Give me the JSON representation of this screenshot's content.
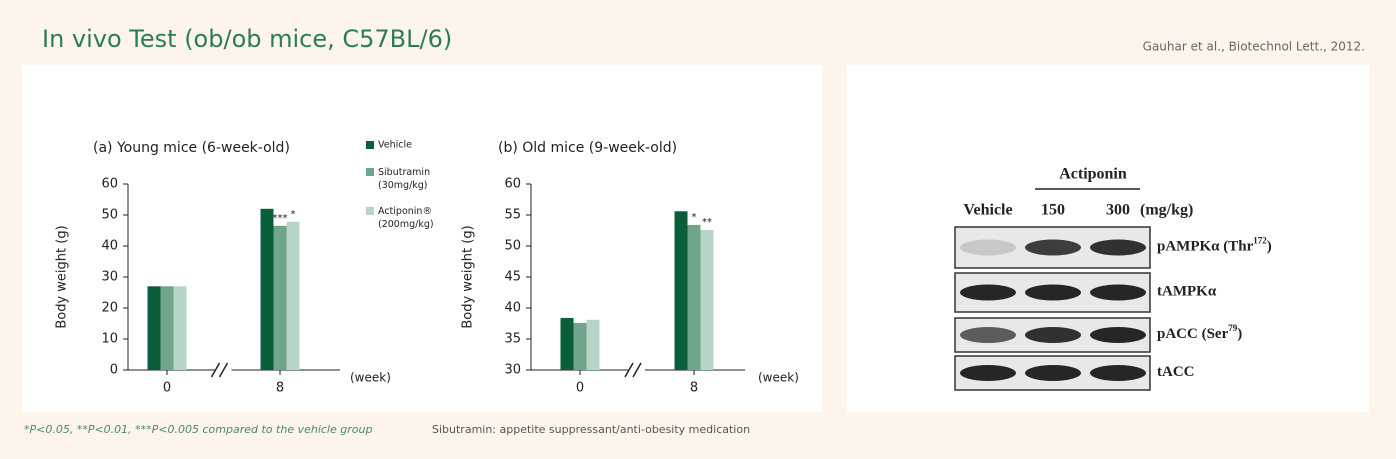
{
  "header": {
    "title": "In vivo Test (ob/ob mice, C57BL/6)",
    "citation": "Gauhar et al., Biotechnol Lett., 2012."
  },
  "chart_data": [
    {
      "type": "bar",
      "title": "(a) Young mice (6-week-old)",
      "y_label": "Body weight (g)",
      "x_unit": "(week)",
      "categories": [
        "0",
        "8"
      ],
      "series": [
        {
          "name": "Vehicle",
          "color": "#0b5e3a",
          "values": [
            27,
            52
          ]
        },
        {
          "name": "Sibutramin (30mg/kg)",
          "color": "#6fa58a",
          "values": [
            27,
            46.5
          ]
        },
        {
          "name": "Actiponin® (200mg/kg)",
          "color": "#b7d5c7",
          "values": [
            27,
            47.8
          ]
        }
      ],
      "annotations": [
        {
          "text": "***",
          "series": 1,
          "category": 1
        },
        {
          "text": "*",
          "series": 2,
          "category": 1
        }
      ],
      "ylim": [
        0,
        60
      ],
      "yticks": [
        0,
        10,
        20,
        30,
        40,
        50,
        60
      ],
      "legend": true
    },
    {
      "type": "bar",
      "title": "(b) Old mice (9-week-old)",
      "y_label": "Body weight (g)",
      "x_unit": "(week)",
      "categories": [
        "0",
        "8"
      ],
      "series": [
        {
          "color": "#0b5e3a",
          "values": [
            38.4,
            55.6
          ]
        },
        {
          "color": "#6fa58a",
          "values": [
            37.6,
            53.4
          ]
        },
        {
          "color": "#b7d5c7",
          "values": [
            38.1,
            52.6
          ]
        }
      ],
      "annotations": [
        {
          "text": "*",
          "series": 1,
          "category": 1
        },
        {
          "text": "**",
          "series": 2,
          "category": 1
        }
      ],
      "ylim": [
        30,
        60
      ],
      "yticks": [
        30,
        35,
        40,
        45,
        50,
        55,
        60
      ],
      "legend": false
    }
  ],
  "footnotes": [
    "*P<0.05, **P<0.01, ***P<0.005 compared to the vehicle group",
    "Sibutramin: appetite suppressant/anti-obesity medication"
  ],
  "blot": {
    "group": "Actiponin",
    "lanes": [
      "Vehicle",
      "150",
      "300"
    ],
    "unit": "(mg/kg)",
    "rows": [
      {
        "base": "pAMPKα (Thr",
        "sup": "172",
        "tail": ")"
      },
      {
        "base": "tAMPKα"
      },
      {
        "base": "pACC (Ser",
        "sup": "79",
        "tail": ")"
      },
      {
        "base": "tACC"
      }
    ]
  }
}
